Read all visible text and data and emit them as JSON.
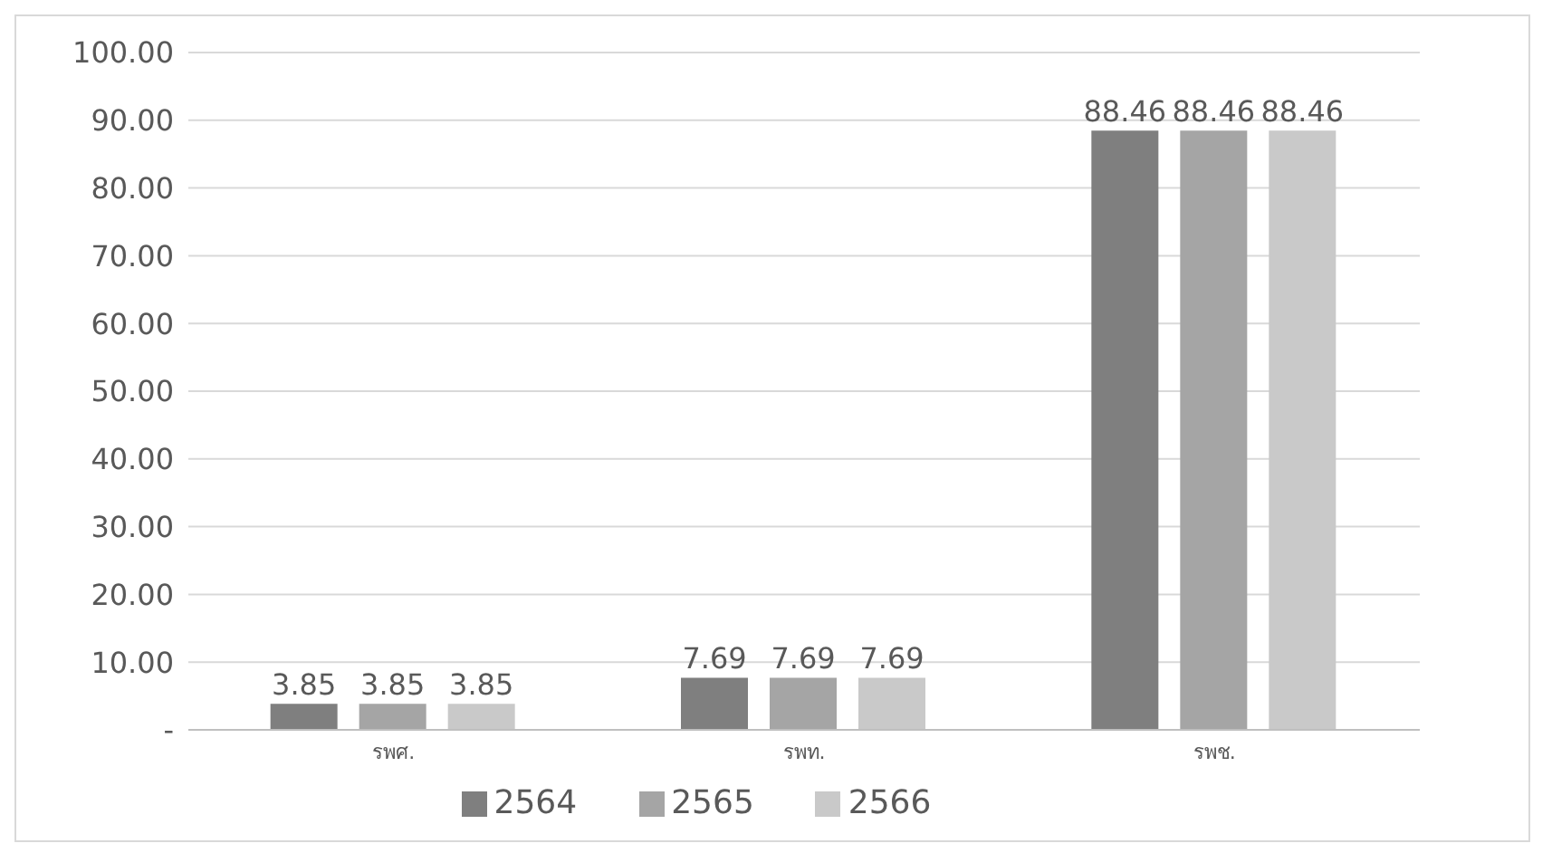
{
  "chart_data": {
    "type": "bar",
    "categories": [
      "รพศ.",
      "รพท.",
      "รพช."
    ],
    "series": [
      {
        "name": "2564",
        "color": "#7f7f7f",
        "values": [
          3.85,
          7.69,
          88.46
        ]
      },
      {
        "name": "2565",
        "color": "#a5a5a5",
        "values": [
          3.85,
          7.69,
          88.46
        ]
      },
      {
        "name": "2566",
        "color": "#c9c9c9",
        "values": [
          3.85,
          7.69,
          88.46
        ]
      }
    ],
    "ylim": [
      0,
      100
    ],
    "yticks": [
      {
        "value": 0,
        "label": "-"
      },
      {
        "value": 10,
        "label": "10.00"
      },
      {
        "value": 20,
        "label": "20.00"
      },
      {
        "value": 30,
        "label": "30.00"
      },
      {
        "value": 40,
        "label": "40.00"
      },
      {
        "value": 50,
        "label": "50.00"
      },
      {
        "value": 60,
        "label": "60.00"
      },
      {
        "value": 70,
        "label": "70.00"
      },
      {
        "value": 80,
        "label": "80.00"
      },
      {
        "value": 90,
        "label": "90.00"
      },
      {
        "value": 100,
        "label": "100.00"
      }
    ],
    "grid": "y",
    "legend": "bottom",
    "data_labels": true
  }
}
